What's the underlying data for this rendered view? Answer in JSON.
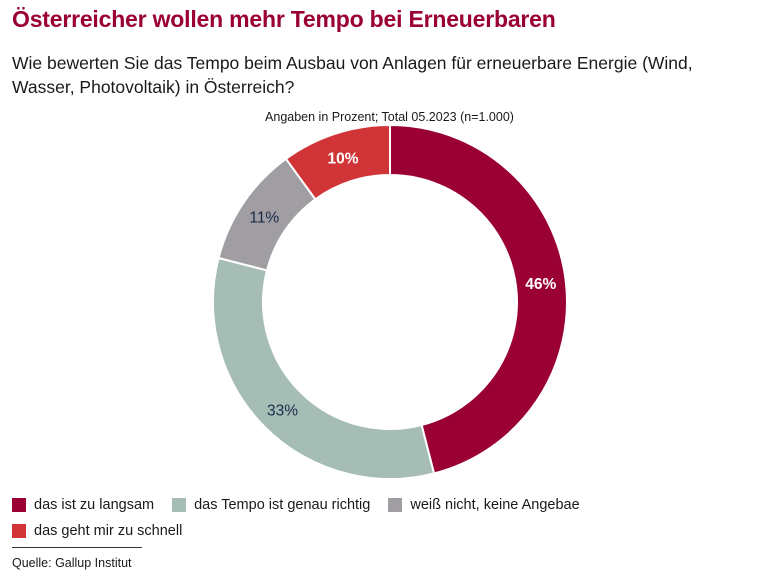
{
  "header": {
    "title": "Österreicher wollen mehr Tempo bei Erneuerbaren",
    "subtitle": "Wie bewerten Sie das Tempo beim Ausbau von Anlagen für erneuerbare Energie (Wind, Wasser, Photovoltaik) in Österreich?",
    "note": "Angaben in Prozent; Total 05.2023 (n=1.000)"
  },
  "chart_data": {
    "type": "pie",
    "variant": "donut",
    "unit": "%",
    "legend_position": "bottom-left",
    "slices": [
      {
        "label": "das ist zu langsam",
        "value": 46,
        "value_label": "46%",
        "color": "#9b0034",
        "label_color": "#ffffff"
      },
      {
        "label": "das Tempo ist genau richtig",
        "value": 33,
        "value_label": "33%",
        "color": "#a5bdb5",
        "label_color": "#1a2a4a"
      },
      {
        "label": "weiß nicht, keine Angebae",
        "value": 11,
        "value_label": "11%",
        "color": "#a09ea3",
        "label_color": "#1a2a4a"
      },
      {
        "label": "das geht mir zu schnell",
        "value": 10,
        "value_label": "10%",
        "color": "#d13436",
        "label_color": "#ffffff"
      }
    ]
  },
  "legend": {
    "rows": [
      [
        0,
        1,
        2
      ],
      [
        3
      ]
    ]
  },
  "footer": {
    "source": "Quelle: Gallup Institut"
  }
}
